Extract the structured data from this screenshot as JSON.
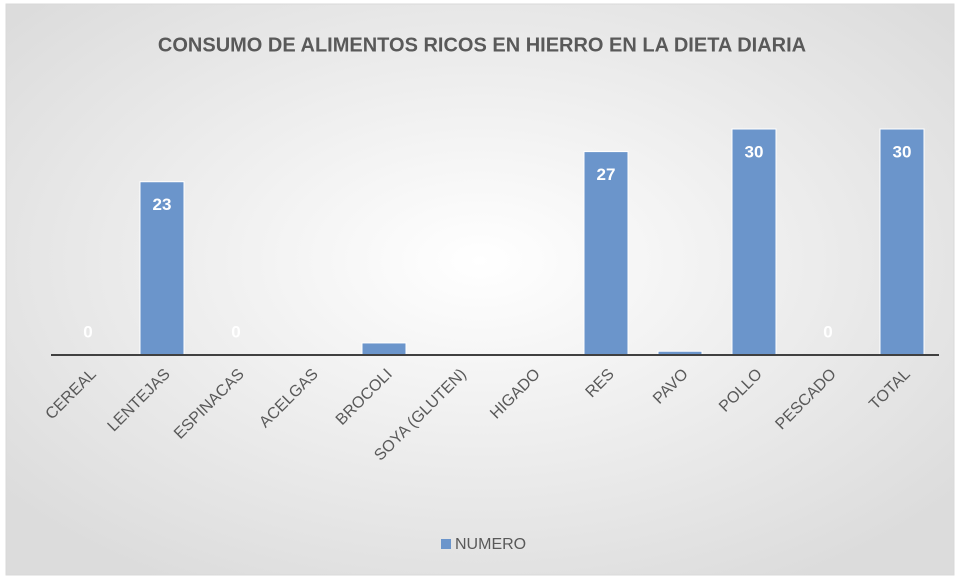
{
  "chart_data": {
    "type": "bar",
    "title": "CONSUMO DE ALIMENTOS RICOS EN HIERRO EN LA DIETA DIARIA",
    "categories": [
      "CEREAL",
      "LENTEJAS",
      "ESPINACAS",
      "ACELGAS",
      "BROCOLI",
      "SOYA (GLUTEN)",
      "HIGADO",
      "RES",
      "PAVO",
      "POLLO",
      "PESCADO",
      "TOTAL"
    ],
    "series": [
      {
        "name": "NUMERO",
        "color": "#6b95cb",
        "values": [
          0,
          23,
          0,
          0,
          1.6,
          0,
          0,
          27,
          0.5,
          30,
          0,
          30
        ],
        "value_labels": [
          "0",
          "23",
          "0",
          null,
          null,
          null,
          null,
          "27",
          null,
          "30",
          "0",
          "30"
        ]
      }
    ],
    "legend": "bottom"
  }
}
